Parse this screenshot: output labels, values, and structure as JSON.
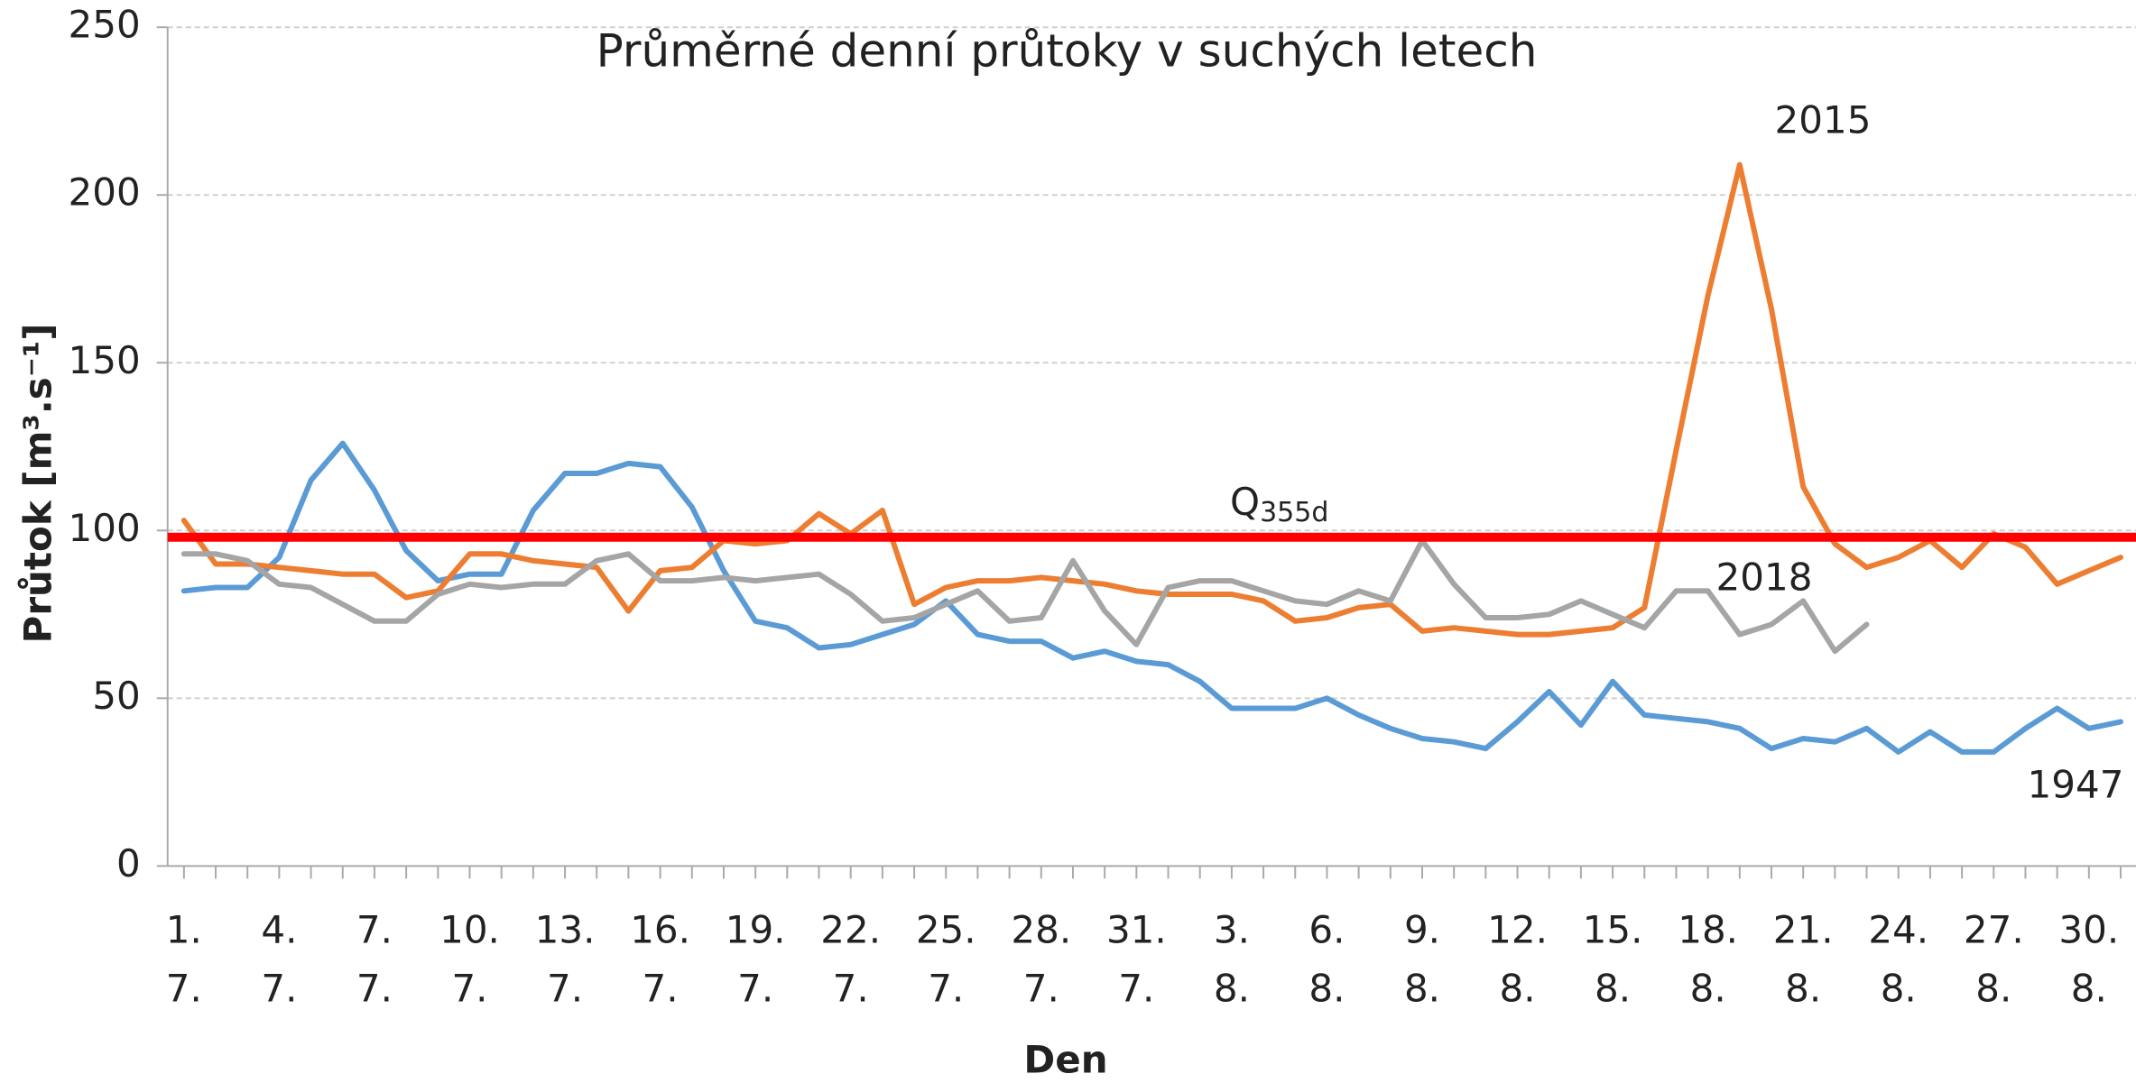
{
  "chart_data": {
    "type": "line",
    "title": "Průměrné denní průtoky v suchých letech",
    "xlabel": "Den",
    "ylabel": "Průtok [m³.s⁻¹]",
    "categories": [
      [
        "1.",
        "7."
      ],
      null,
      null,
      [
        "4.",
        "7."
      ],
      null,
      null,
      [
        "7.",
        "7."
      ],
      null,
      null,
      [
        "10.",
        "7."
      ],
      null,
      null,
      [
        "13.",
        "7."
      ],
      null,
      null,
      [
        "16.",
        "7."
      ],
      null,
      null,
      [
        "19.",
        "7."
      ],
      null,
      null,
      [
        "22.",
        "7."
      ],
      null,
      null,
      [
        "25.",
        "7."
      ],
      null,
      null,
      [
        "28.",
        "7."
      ],
      null,
      null,
      [
        "31.",
        "7."
      ],
      null,
      null,
      [
        "3.",
        "8."
      ],
      null,
      null,
      [
        "6.",
        "8."
      ],
      null,
      null,
      [
        "9.",
        "8."
      ],
      null,
      null,
      [
        "12.",
        "8."
      ],
      null,
      null,
      [
        "15.",
        "8."
      ],
      null,
      null,
      [
        "18.",
        "8."
      ],
      null,
      null,
      [
        "21.",
        "8."
      ],
      null,
      null,
      [
        "24.",
        "8."
      ],
      null,
      null,
      [
        "27.",
        "8."
      ],
      null,
      null,
      [
        "30.",
        "8."
      ],
      null
    ],
    "series": [
      {
        "name": "1947",
        "color": "#5b9bd5",
        "values": [
          82,
          83,
          83,
          92,
          115,
          126,
          112,
          94,
          85,
          87,
          87,
          106,
          117,
          117,
          120,
          119,
          107,
          88,
          73,
          71,
          65,
          66,
          69,
          72,
          79,
          69,
          67,
          67,
          62,
          64,
          61,
          60,
          55,
          47,
          47,
          47,
          50,
          45,
          41,
          38,
          37,
          35,
          43,
          52,
          42,
          55,
          45,
          44,
          43,
          41,
          35,
          38,
          37,
          41,
          34,
          40,
          34,
          34,
          41,
          47,
          41,
          43
        ]
      },
      {
        "name": "2015",
        "color": "#ed7d31",
        "values": [
          103,
          90,
          90,
          89,
          88,
          87,
          87,
          80,
          82,
          93,
          93,
          91,
          90,
          89,
          76,
          88,
          89,
          97,
          96,
          97,
          105,
          99,
          106,
          78,
          83,
          85,
          85,
          86,
          85,
          84,
          82,
          81,
          81,
          81,
          79,
          73,
          74,
          77,
          78,
          70,
          71,
          70,
          69,
          69,
          70,
          71,
          77,
          124,
          170,
          209,
          166,
          113,
          96,
          89,
          92,
          97,
          89,
          99,
          95,
          84,
          88,
          92
        ]
      },
      {
        "name": "2018",
        "color": "#a5a5a5",
        "values": [
          93,
          93,
          91,
          84,
          83,
          78,
          73,
          73,
          81,
          84,
          83,
          84,
          84,
          91,
          93,
          85,
          85,
          86,
          85,
          86,
          87,
          81,
          73,
          74,
          78,
          82,
          73,
          74,
          91,
          76,
          66,
          83,
          85,
          85,
          82,
          79,
          78,
          82,
          79,
          97,
          84,
          74,
          74,
          75,
          79,
          75,
          71,
          82,
          82,
          69,
          72,
          79,
          64,
          72,
          null,
          null,
          null,
          null,
          null,
          null,
          null,
          null
        ]
      }
    ],
    "reference_line": {
      "value": 98,
      "color": "#ff0000",
      "label": "Q",
      "label_sub": "355d"
    },
    "ylim": [
      0,
      250
    ],
    "yticks": [
      0,
      50,
      100,
      150,
      200,
      250
    ],
    "grid": true
  }
}
